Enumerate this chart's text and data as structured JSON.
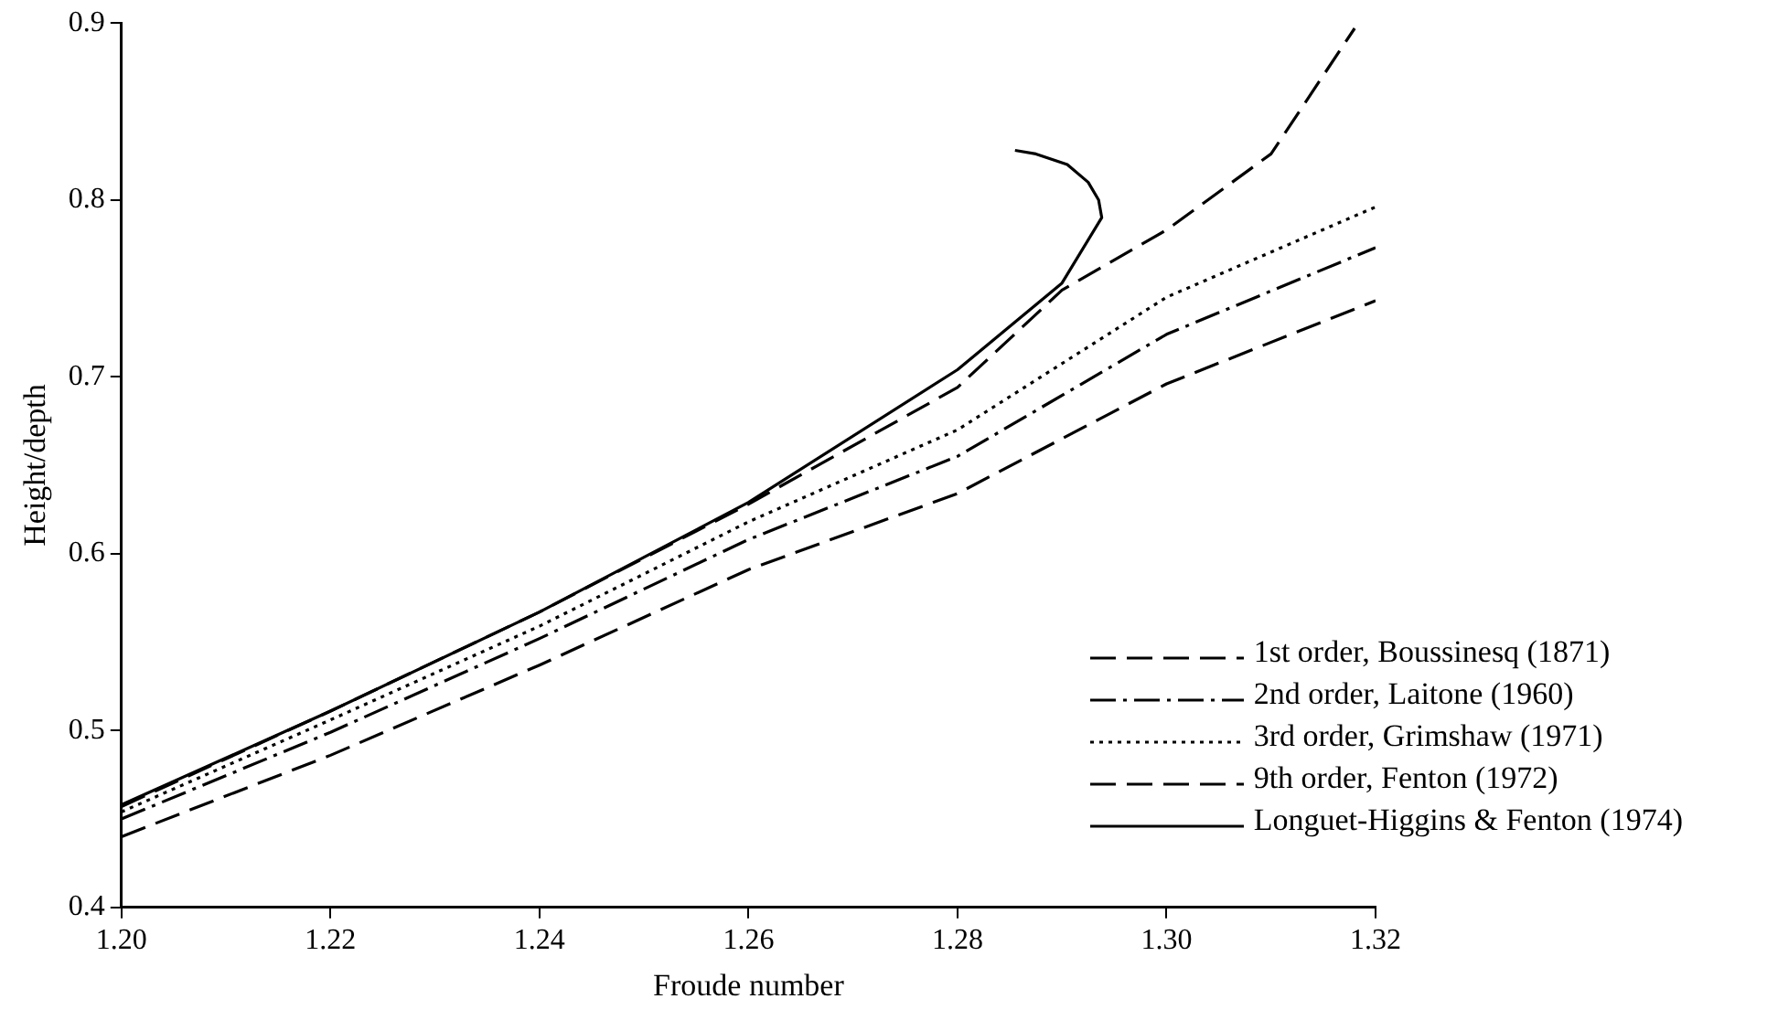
{
  "chart_data": {
    "type": "line",
    "xlabel": "Froude number",
    "ylabel": "Height/depth",
    "xlim": [
      1.2,
      1.32
    ],
    "ylim": [
      0.4,
      0.9
    ],
    "xticks": [
      {
        "value": 1.2,
        "label": "1.20"
      },
      {
        "value": 1.22,
        "label": "1.22"
      },
      {
        "value": 1.24,
        "label": "1.24"
      },
      {
        "value": 1.26,
        "label": "1.26"
      },
      {
        "value": 1.28,
        "label": "1.28"
      },
      {
        "value": 1.3,
        "label": "1.30"
      },
      {
        "value": 1.32,
        "label": "1.32"
      }
    ],
    "yticks": [
      0.4,
      0.5,
      0.6,
      0.7,
      0.8,
      0.9
    ],
    "grid": false,
    "legend": "bottom right",
    "marker": "none",
    "series": [
      {
        "name": "1st order, Boussinesq (1871)",
        "color": "#000000",
        "line_style": "dashed",
        "x": [
          1.2,
          1.22,
          1.24,
          1.26,
          1.28,
          1.3,
          1.32
        ],
        "values": [
          0.44,
          0.486,
          0.537,
          0.591,
          0.634,
          0.696,
          0.743
        ]
      },
      {
        "name": "2nd order, Laitone (1960)",
        "color": "#000000",
        "line_style": "dashdot",
        "x": [
          1.2,
          1.22,
          1.24,
          1.26,
          1.28,
          1.3,
          1.32
        ],
        "values": [
          0.45,
          0.499,
          0.552,
          0.608,
          0.655,
          0.724,
          0.773
        ]
      },
      {
        "name": "3rd order, Grimshaw (1971)",
        "color": "#000000",
        "line_style": "dotted",
        "x": [
          1.2,
          1.22,
          1.24,
          1.26,
          1.28,
          1.3,
          1.32
        ],
        "values": [
          0.454,
          0.506,
          0.559,
          0.618,
          0.67,
          0.745,
          0.796
        ]
      },
      {
        "name": "9th order, Fenton (1972)",
        "color": "#000000",
        "line_style": "dashed",
        "x": [
          1.2,
          1.22,
          1.24,
          1.26,
          1.28,
          1.29,
          1.3,
          1.31,
          1.318
        ],
        "values": [
          0.457,
          0.511,
          0.567,
          0.628,
          0.694,
          0.749,
          0.783,
          0.826,
          0.897
        ]
      },
      {
        "name": "Longuet-Higgins & Fenton (1974)",
        "color": "#000000",
        "line_style": "solid",
        "x": [
          1.2,
          1.22,
          1.24,
          1.26,
          1.28,
          1.29,
          1.2938,
          1.2935,
          1.2925,
          1.2905,
          1.2875,
          1.2855
        ],
        "values": [
          0.458,
          0.511,
          0.567,
          0.629,
          0.704,
          0.753,
          0.79,
          0.8,
          0.81,
          0.82,
          0.826,
          0.828
        ]
      }
    ]
  }
}
